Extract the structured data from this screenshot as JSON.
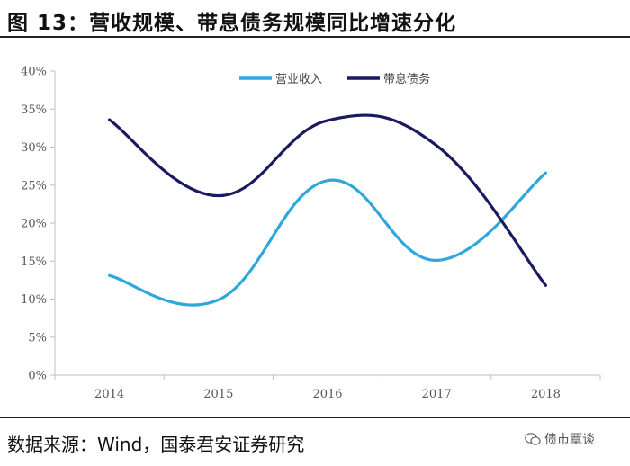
{
  "figure": {
    "title": "图 13：营收规模、带息债务规模同比增速分化",
    "source": "数据来源：Wind，国泰君安证券研究",
    "watermark": "债市覃谈",
    "watermark_icon": "wechat-icon"
  },
  "chart_data": {
    "type": "line",
    "categories": [
      "2014",
      "2015",
      "2016",
      "2017",
      "2018"
    ],
    "series": [
      {
        "name": "营业收入",
        "values": [
          13.1,
          9.9,
          25.6,
          15.1,
          26.6
        ],
        "color": "#2ea8dc"
      },
      {
        "name": "带息债务",
        "values": [
          33.6,
          23.6,
          33.5,
          30.2,
          11.8
        ],
        "color": "#1a1a5e"
      }
    ],
    "ylim": [
      0,
      40
    ],
    "yticks": [
      "0%",
      "5%",
      "10%",
      "15%",
      "20%",
      "25%",
      "30%",
      "35%",
      "40%"
    ],
    "legend_position": "top",
    "grid": false,
    "smooth": true
  }
}
